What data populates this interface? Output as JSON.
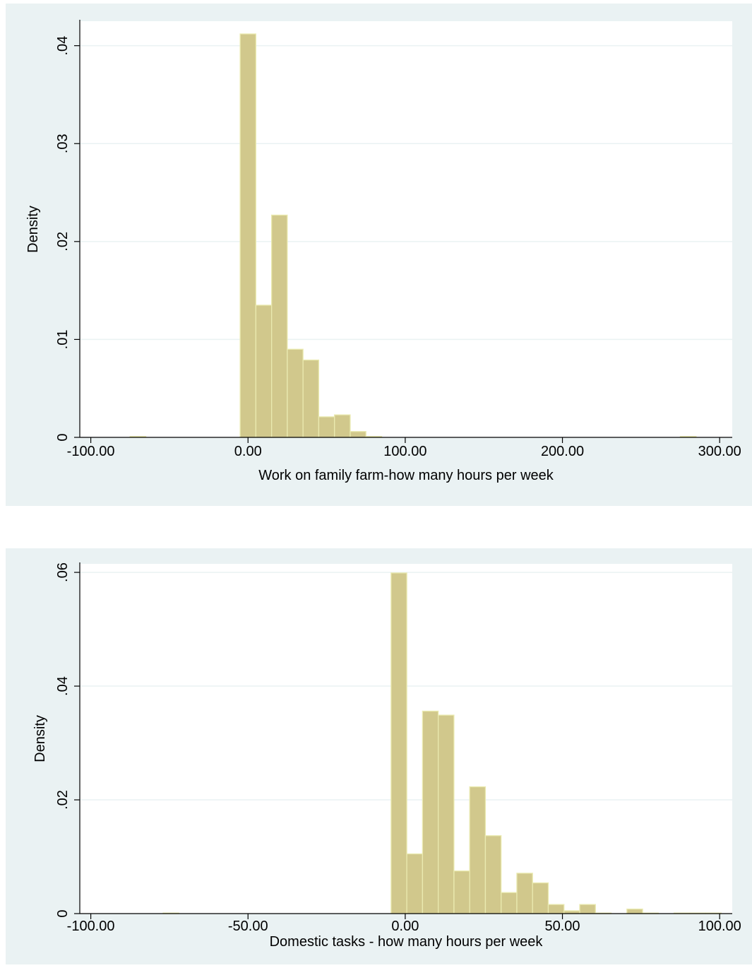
{
  "chart_data": [
    {
      "type": "bar",
      "subtype": "histogram",
      "xlabel": "Work on family farm-how many hours per week",
      "ylabel": "Density",
      "xlim": [
        -107,
        308
      ],
      "ylim": [
        0,
        0.0425
      ],
      "xticks": [
        -100,
        0,
        100,
        200,
        300
      ],
      "xtick_labels": [
        "-100.00",
        "0.00",
        "100.00",
        "200.00",
        "300.00"
      ],
      "yticks": [
        0,
        0.01,
        0.02,
        0.03,
        0.04
      ],
      "ytick_labels": [
        "0",
        ".01",
        ".02",
        ".03",
        ".04"
      ],
      "grid": true,
      "bar_color": "#d1c88c",
      "bins": [
        {
          "x0": -75,
          "x1": -65,
          "value": 0.0001
        },
        {
          "x0": -5,
          "x1": 5,
          "value": 0.0412
        },
        {
          "x0": 5,
          "x1": 15,
          "value": 0.0135
        },
        {
          "x0": 15,
          "x1": 25,
          "value": 0.0227
        },
        {
          "x0": 25,
          "x1": 35,
          "value": 0.009
        },
        {
          "x0": 35,
          "x1": 45,
          "value": 0.0079
        },
        {
          "x0": 45,
          "x1": 55,
          "value": 0.0021
        },
        {
          "x0": 55,
          "x1": 65,
          "value": 0.0023
        },
        {
          "x0": 65,
          "x1": 75,
          "value": 0.0006
        },
        {
          "x0": 75,
          "x1": 85,
          "value": 0.0001
        },
        {
          "x0": 275,
          "x1": 285,
          "value": 0.0001
        }
      ]
    },
    {
      "type": "bar",
      "subtype": "histogram",
      "xlabel": "Domestic tasks - how many hours per week",
      "ylabel": "Density",
      "xlim": [
        -103.5,
        104
      ],
      "ylim": [
        0,
        0.0615
      ],
      "xticks": [
        -100,
        -50,
        0,
        50,
        100
      ],
      "xtick_labels": [
        "-100.00",
        "-50.00",
        "0.00",
        "50.00",
        "100.00"
      ],
      "yticks": [
        0,
        0.02,
        0.04,
        0.06
      ],
      "ytick_labels": [
        "0",
        ".02",
        ".04",
        ".06"
      ],
      "grid": true,
      "bar_color": "#d1c88c",
      "bins": [
        {
          "x0": -77,
          "x1": -72,
          "value": 0.0001
        },
        {
          "x0": -4.5,
          "x1": 0.5,
          "value": 0.0599
        },
        {
          "x0": 0.5,
          "x1": 5.5,
          "value": 0.0105
        },
        {
          "x0": 5.5,
          "x1": 10.5,
          "value": 0.0356
        },
        {
          "x0": 10.5,
          "x1": 15.5,
          "value": 0.0349
        },
        {
          "x0": 15.5,
          "x1": 20.5,
          "value": 0.0075
        },
        {
          "x0": 20.5,
          "x1": 25.5,
          "value": 0.0223
        },
        {
          "x0": 25.5,
          "x1": 30.5,
          "value": 0.0137
        },
        {
          "x0": 30.5,
          "x1": 35.5,
          "value": 0.0037
        },
        {
          "x0": 35.5,
          "x1": 40.5,
          "value": 0.0071
        },
        {
          "x0": 40.5,
          "x1": 45.5,
          "value": 0.0054
        },
        {
          "x0": 45.5,
          "x1": 50.5,
          "value": 0.0016
        },
        {
          "x0": 50.5,
          "x1": 55.5,
          "value": 0.0005
        },
        {
          "x0": 55.5,
          "x1": 60.5,
          "value": 0.0016
        },
        {
          "x0": 60.5,
          "x1": 65.5,
          "value": 0.0001
        },
        {
          "x0": 70.5,
          "x1": 75.5,
          "value": 0.0008
        },
        {
          "x0": 75.5,
          "x1": 80.5,
          "value": 0.0001
        },
        {
          "x0": 85.5,
          "x1": 90.5,
          "value": 0.0001
        },
        {
          "x0": 90.5,
          "x1": 95.5,
          "value": 0.0001
        },
        {
          "x0": 95.5,
          "x1": 100.5,
          "value": 0.0001
        }
      ]
    }
  ]
}
